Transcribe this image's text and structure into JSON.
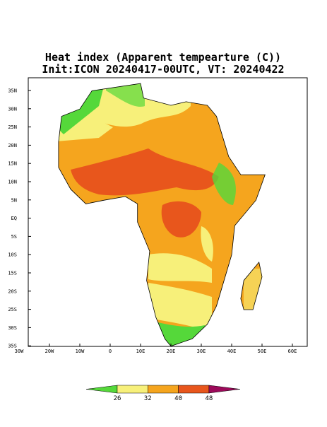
{
  "title": [
    "Heat index (Apparent tempearture (C))",
    "Init:ICON 20240417-00UTC, VT: 20240422"
  ],
  "lat_labels": [
    "35N",
    "30N",
    "25N",
    "20N",
    "15N",
    "10N",
    "5N",
    "EQ",
    "5S",
    "10S",
    "15S",
    "20S",
    "25S",
    "30S",
    "35S"
  ],
  "lon_labels": [
    "30W",
    "20W",
    "10W",
    "0",
    "10E",
    "20E",
    "30E",
    "40E",
    "50E",
    "60E"
  ],
  "colorbar": {
    "labels": [
      26,
      32,
      40,
      48
    ],
    "colors": [
      "#55d83a",
      "#f7f07a",
      "#f5a51e",
      "#e8561c",
      "#9c0a5a"
    ]
  }
}
